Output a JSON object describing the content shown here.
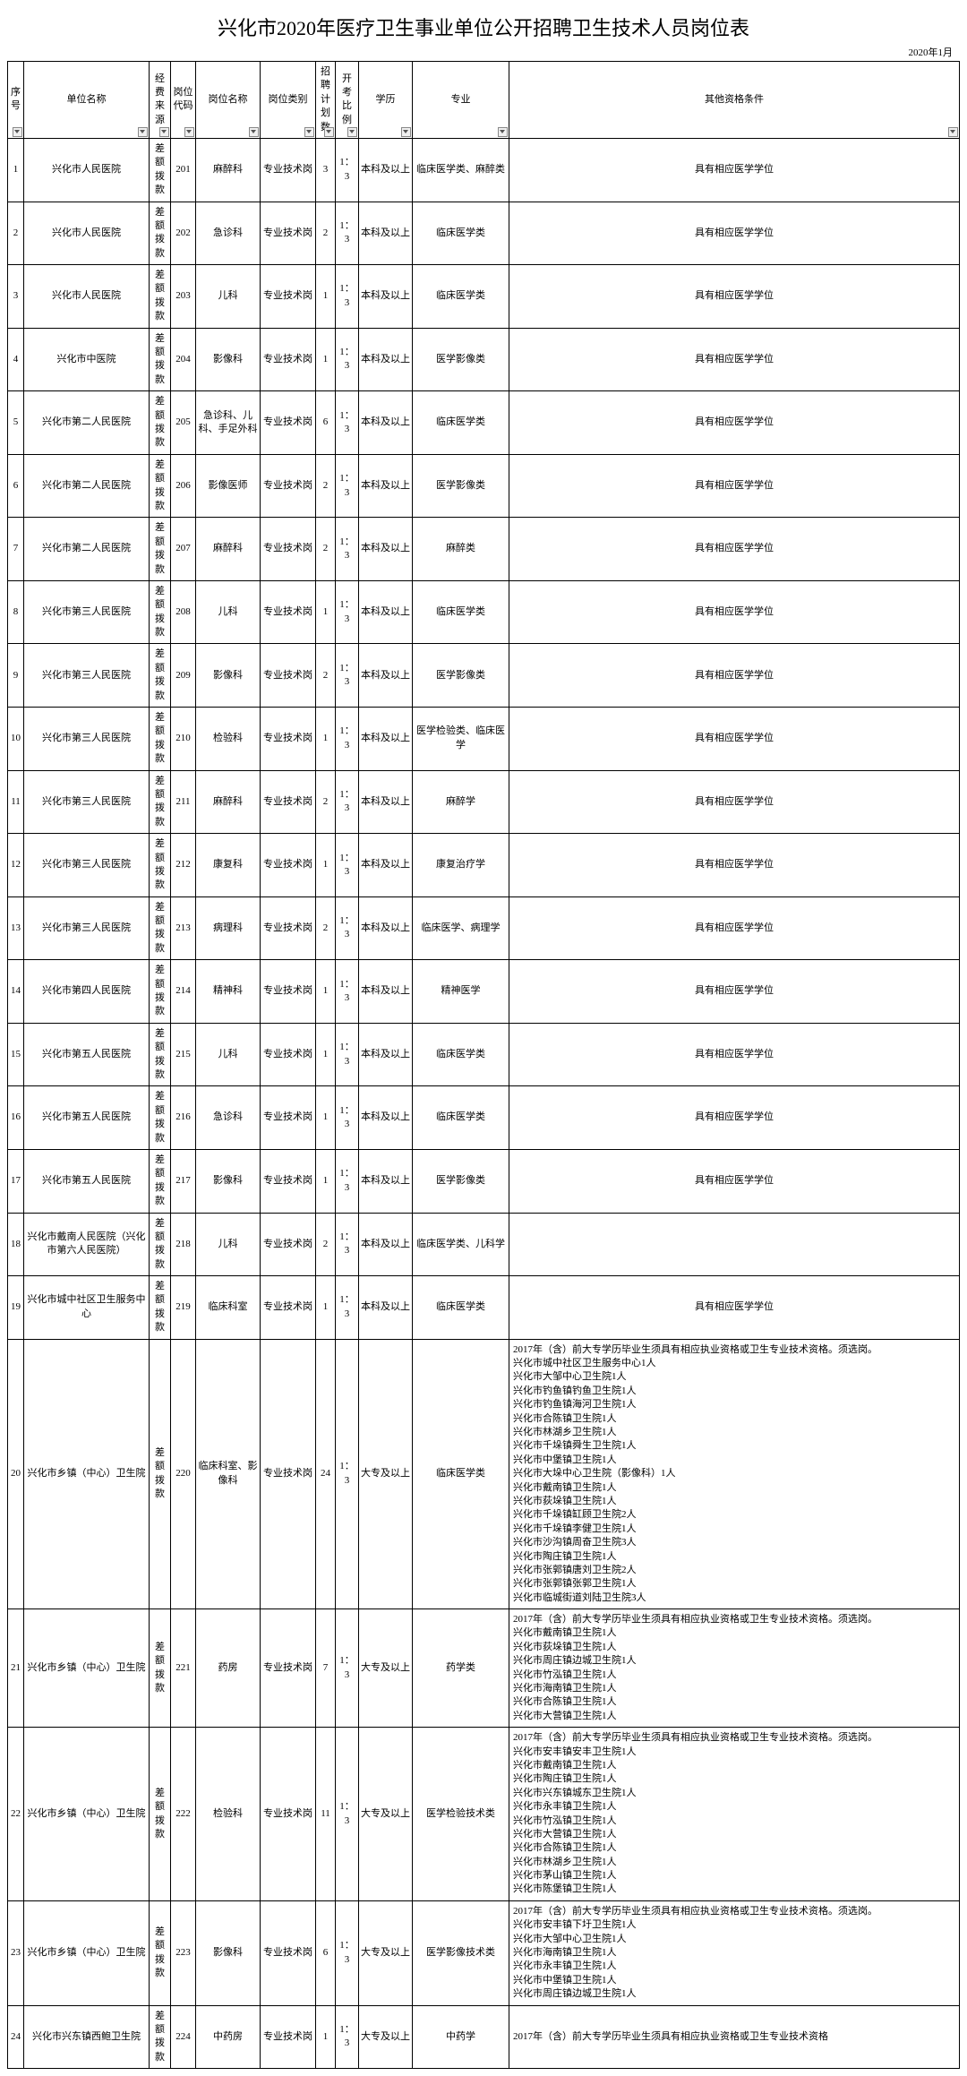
{
  "title": "兴化市2020年医疗卫生事业单位公开招聘卫生技术人员岗位表",
  "date": "2020年1月",
  "columns": [
    "序号",
    "单位名称",
    "经费来源",
    "岗位代码",
    "岗位名称",
    "岗位类别",
    "招聘计划数",
    "开考比例",
    "学历",
    "专业",
    "其他资格条件"
  ],
  "rows": [
    {
      "c": [
        "1",
        "兴化市人民医院",
        "差额拨款",
        "201",
        "麻醉科",
        "专业技术岗",
        "3",
        "1：3",
        "本科及以上",
        "临床医学类、麻醉类",
        "具有相应医学学位"
      ]
    },
    {
      "c": [
        "2",
        "兴化市人民医院",
        "差额拨款",
        "202",
        "急诊科",
        "专业技术岗",
        "2",
        "1：3",
        "本科及以上",
        "临床医学类",
        "具有相应医学学位"
      ]
    },
    {
      "c": [
        "3",
        "兴化市人民医院",
        "差额拨款",
        "203",
        "儿科",
        "专业技术岗",
        "1",
        "1：3",
        "本科及以上",
        "临床医学类",
        "具有相应医学学位"
      ]
    },
    {
      "c": [
        "4",
        "兴化市中医院",
        "差额拨款",
        "204",
        "影像科",
        "专业技术岗",
        "1",
        "1：3",
        "本科及以上",
        "医学影像类",
        "具有相应医学学位"
      ]
    },
    {
      "c": [
        "5",
        "兴化市第二人民医院",
        "差额拨款",
        "205",
        "急诊科、儿科、手足外科",
        "专业技术岗",
        "6",
        "1：3",
        "本科及以上",
        "临床医学类",
        "具有相应医学学位"
      ]
    },
    {
      "c": [
        "6",
        "兴化市第二人民医院",
        "差额拨款",
        "206",
        "影像医师",
        "专业技术岗",
        "2",
        "1：3",
        "本科及以上",
        "医学影像类",
        "具有相应医学学位"
      ]
    },
    {
      "c": [
        "7",
        "兴化市第二人民医院",
        "差额拨款",
        "207",
        "麻醉科",
        "专业技术岗",
        "2",
        "1：3",
        "本科及以上",
        "麻醉类",
        "具有相应医学学位"
      ]
    },
    {
      "c": [
        "8",
        "兴化市第三人民医院",
        "差额拨款",
        "208",
        "儿科",
        "专业技术岗",
        "1",
        "1：3",
        "本科及以上",
        "临床医学类",
        "具有相应医学学位"
      ]
    },
    {
      "c": [
        "9",
        "兴化市第三人民医院",
        "差额拨款",
        "209",
        "影像科",
        "专业技术岗",
        "2",
        "1：3",
        "本科及以上",
        "医学影像类",
        "具有相应医学学位"
      ]
    },
    {
      "c": [
        "10",
        "兴化市第三人民医院",
        "差额拨款",
        "210",
        "检验科",
        "专业技术岗",
        "1",
        "1：3",
        "本科及以上",
        "医学检验类、临床医学",
        "具有相应医学学位"
      ]
    },
    {
      "c": [
        "11",
        "兴化市第三人民医院",
        "差额拨款",
        "211",
        "麻醉科",
        "专业技术岗",
        "2",
        "1：3",
        "本科及以上",
        "麻醉学",
        "具有相应医学学位"
      ]
    },
    {
      "c": [
        "12",
        "兴化市第三人民医院",
        "差额拨款",
        "212",
        "康复科",
        "专业技术岗",
        "1",
        "1：3",
        "本科及以上",
        "康复治疗学",
        "具有相应医学学位"
      ]
    },
    {
      "c": [
        "13",
        "兴化市第三人民医院",
        "差额拨款",
        "213",
        "病理科",
        "专业技术岗",
        "2",
        "1：3",
        "本科及以上",
        "临床医学、病理学",
        "具有相应医学学位"
      ]
    },
    {
      "c": [
        "14",
        "兴化市第四人民医院",
        "差额拨款",
        "214",
        "精神科",
        "专业技术岗",
        "1",
        "1：3",
        "本科及以上",
        "精神医学",
        "具有相应医学学位"
      ]
    },
    {
      "c": [
        "15",
        "兴化市第五人民医院",
        "差额拨款",
        "215",
        "儿科",
        "专业技术岗",
        "1",
        "1：3",
        "本科及以上",
        "临床医学类",
        "具有相应医学学位"
      ]
    },
    {
      "c": [
        "16",
        "兴化市第五人民医院",
        "差额拨款",
        "216",
        "急诊科",
        "专业技术岗",
        "1",
        "1：3",
        "本科及以上",
        "临床医学类",
        "具有相应医学学位"
      ]
    },
    {
      "c": [
        "17",
        "兴化市第五人民医院",
        "差额拨款",
        "217",
        "影像科",
        "专业技术岗",
        "1",
        "1：3",
        "本科及以上",
        "医学影像类",
        "具有相应医学学位"
      ]
    },
    {
      "c": [
        "18",
        "兴化市戴南人民医院（兴化市第六人民医院）",
        "差额拨款",
        "218",
        "儿科",
        "专业技术岗",
        "2",
        "1：3",
        "本科及以上",
        "临床医学类、儿科学",
        ""
      ]
    },
    {
      "c": [
        "19",
        "兴化市城中社区卫生服务中心",
        "差额拨款",
        "219",
        "临床科室",
        "专业技术岗",
        "1",
        "1：3",
        "本科及以上",
        "临床医学类",
        "具有相应医学学位"
      ]
    },
    {
      "c": [
        "20",
        "兴化市乡镇（中心）卫生院",
        "差额拨款",
        "220",
        "临床科室、影像科",
        "专业技术岗",
        "24",
        "1：3",
        "大专及以上",
        "临床医学类",
        "2017年（含）前大专学历毕业生须具有相应执业资格或卫生专业技术资格。须选岗。\n兴化市城中社区卫生服务中心1人\n兴化市大邹中心卫生院1人\n兴化市钓鱼镇钓鱼卫生院1人\n兴化市钓鱼镇海河卫生院1人\n兴化市合陈镇卫生院1人\n兴化市林湖乡卫生院1人\n兴化市千垛镇舜生卫生院1人\n兴化市中堡镇卫生院1人\n兴化市大垛中心卫生院（影像科）1人\n兴化市戴南镇卫生院1人\n兴化市荻垛镇卫生院1人\n兴化市千垛镇缸顾卫生院2人\n兴化市千垛镇李健卫生院1人\n兴化市沙沟镇周奋卫生院3人\n兴化市陶庄镇卫生院1人\n兴化市张郭镇唐刘卫生院2人\n兴化市张郭镇张郭卫生院1人\n兴化市临城街道刘陆卫生院3人"
      ],
      "leftLast": true
    },
    {
      "c": [
        "21",
        "兴化市乡镇（中心）卫生院",
        "差额拨款",
        "221",
        "药房",
        "专业技术岗",
        "7",
        "1：3",
        "大专及以上",
        "药学类",
        "2017年（含）前大专学历毕业生须具有相应执业资格或卫生专业技术资格。须选岗。\n兴化市戴南镇卫生院1人\n兴化市荻垛镇卫生院1人\n兴化市周庄镇边城卫生院1人\n兴化市竹泓镇卫生院1人\n兴化市海南镇卫生院1人\n兴化市合陈镇卫生院1人\n兴化市大营镇卫生院1人"
      ],
      "leftLast": true
    },
    {
      "c": [
        "22",
        "兴化市乡镇（中心）卫生院",
        "差额拨款",
        "222",
        "检验科",
        "专业技术岗",
        "11",
        "1：3",
        "大专及以上",
        "医学检验技术类",
        "2017年（含）前大专学历毕业生须具有相应执业资格或卫生专业技术资格。须选岗。\n兴化市安丰镇安丰卫生院1人\n兴化市戴南镇卫生院1人\n兴化市陶庄镇卫生院1人\n兴化市兴东镇城东卫生院1人\n兴化市永丰镇卫生院1人\n兴化市竹泓镇卫生院1人\n兴化市大营镇卫生院1人\n兴化市合陈镇卫生院1人\n兴化市林湖乡卫生院1人\n兴化市茅山镇卫生院1人\n兴化市陈堡镇卫生院1人"
      ],
      "leftLast": true
    },
    {
      "c": [
        "23",
        "兴化市乡镇（中心）卫生院",
        "差额拨款",
        "223",
        "影像科",
        "专业技术岗",
        "6",
        "1：3",
        "大专及以上",
        "医学影像技术类",
        "2017年（含）前大专学历毕业生须具有相应执业资格或卫生专业技术资格。须选岗。\n兴化市安丰镇下圩卫生院1人\n兴化市大邹中心卫生院1人\n兴化市海南镇卫生院1人\n兴化市永丰镇卫生院1人\n兴化市中堡镇卫生院1人\n兴化市周庄镇边城卫生院1人"
      ],
      "leftLast": true
    },
    {
      "c": [
        "24",
        "兴化市兴东镇西鲍卫生院",
        "差额拨款",
        "224",
        "中药房",
        "专业技术岗",
        "1",
        "1：3",
        "大专及以上",
        "中药学",
        "2017年（含）前大专学历毕业生须具有相应执业资格或卫生专业技术资格"
      ],
      "leftLast": true
    }
  ]
}
